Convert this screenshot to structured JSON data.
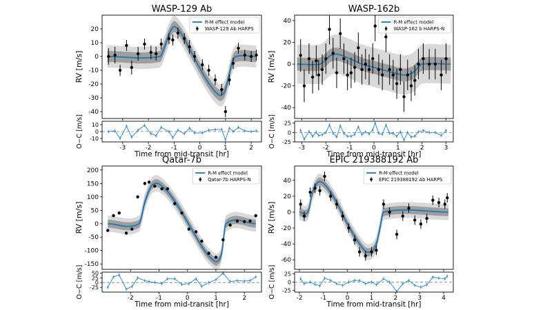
{
  "figure": {
    "legend_model_label": "R-M effect model"
  },
  "chart_data": [
    {
      "type": "line",
      "title": "WASP-129 Ab",
      "xlabel": "Time from mid-transit [hr]",
      "ylabel": "RV [m/s]",
      "resid_ylabel": "O−C [m/s]",
      "legend_data_label": "WASP-129 Ab HARPS",
      "legend_position": "top-right",
      "xlim": [
        -3.8,
        2.4
      ],
      "ylim": [
        -45,
        30
      ],
      "yticks": [
        -40,
        -30,
        -20,
        -10,
        0,
        10,
        20
      ],
      "xticks": [
        -3,
        -2,
        -1,
        0,
        1,
        2
      ],
      "resid_ylim": [
        -15,
        15
      ],
      "resid_yticks": [
        -10,
        0,
        10
      ],
      "model": {
        "x": [
          -3.6,
          -1.55,
          -1.35,
          -1.2,
          -1.05,
          -0.95,
          -0.7,
          -0.3,
          0.3,
          0.75,
          0.95,
          1.1,
          1.25,
          1.4,
          2.2
        ],
        "y": [
          0,
          0,
          8,
          16,
          21,
          21.5,
          16,
          2,
          -18,
          -28,
          -26,
          -17,
          -5,
          0,
          0
        ]
      },
      "model_band_width": 4,
      "model_band_width_outer": 8,
      "data": {
        "x": [
          -3.55,
          -3.3,
          -3.1,
          -2.85,
          -2.65,
          -2.4,
          -2.15,
          -1.9,
          -1.7,
          -1.5,
          -1.2,
          -1.05,
          -0.85,
          -0.6,
          -0.4,
          -0.2,
          0.1,
          0.35,
          0.6,
          0.85,
          1.0,
          1.15,
          1.3,
          1.5,
          1.75,
          2.0,
          2.2
        ],
        "y": [
          0,
          1,
          -10,
          8,
          -8,
          2,
          9,
          3,
          2,
          9,
          13,
          12,
          17,
          13,
          7,
          0,
          -6,
          -10,
          -17,
          -24,
          -40,
          -17,
          -5,
          6,
          1,
          0,
          1
        ],
        "err": [
          6,
          6,
          4,
          4,
          5,
          5,
          4,
          5,
          5,
          4,
          4,
          4,
          4,
          4,
          5,
          4,
          4,
          4,
          4,
          4,
          4,
          4,
          4,
          4,
          4,
          4,
          4
        ]
      },
      "residuals": [
        0,
        1,
        -10,
        8,
        -8,
        2,
        9,
        -3,
        -6,
        6,
        0,
        -9,
        2,
        -3,
        5,
        -2,
        -2,
        2,
        3,
        3,
        -12,
        5,
        0,
        6,
        1,
        0,
        1
      ]
    },
    {
      "type": "line",
      "title": "WASP-162b",
      "xlabel": "Time from mid-transit [hr]",
      "ylabel": "RV [m/s]",
      "resid_ylabel": "O−C [m/s]",
      "legend_data_label": "WASP-162 b HARPS-N",
      "legend_position": "top-right",
      "xlim": [
        -3.3,
        3.3
      ],
      "ylim": [
        -50,
        45
      ],
      "yticks": [
        -40,
        -20,
        0,
        20,
        40
      ],
      "xticks": [
        -3,
        -2,
        -1,
        0,
        1,
        2,
        3
      ],
      "resid_ylim": [
        -25,
        30
      ],
      "resid_yticks": [
        -25,
        0,
        25
      ],
      "model": {
        "x": [
          -3.2,
          -2.25,
          -2.0,
          -1.8,
          -1.5,
          -1.0,
          -0.5,
          0.0,
          0.5,
          1.0,
          1.3,
          1.6,
          1.8,
          2.0,
          3.2
        ],
        "y": [
          0,
          0,
          4,
          8,
          9,
          5,
          0,
          -3,
          -6,
          -9,
          -10,
          -8,
          -4,
          0,
          0
        ]
      },
      "model_band_width": 6,
      "model_band_width_outer": 18,
      "data": {
        "x": [
          -3.05,
          -2.9,
          -2.7,
          -2.55,
          -2.4,
          -2.3,
          -2.15,
          -2.0,
          -1.85,
          -1.7,
          -1.55,
          -1.4,
          -1.25,
          -1.1,
          -0.95,
          -0.8,
          -0.65,
          -0.5,
          -0.35,
          -0.2,
          -0.05,
          0.05,
          0.2,
          0.35,
          0.5,
          0.65,
          0.8,
          0.95,
          1.1,
          1.25,
          1.4,
          1.55,
          1.7,
          1.85,
          2.05,
          2.3,
          2.55,
          2.8,
          3.0
        ],
        "y": [
          8,
          -20,
          5,
          -12,
          3,
          -10,
          -5,
          5,
          32,
          10,
          -8,
          28,
          5,
          -10,
          -8,
          -3,
          15,
          -5,
          0,
          -5,
          5,
          35,
          -5,
          -10,
          25,
          -5,
          -10,
          -18,
          -5,
          -30,
          -10,
          -20,
          -15,
          0,
          5,
          0,
          0,
          -10,
          5
        ],
        "err": [
          15,
          15,
          14,
          15,
          14,
          14,
          14,
          14,
          14,
          14,
          14,
          14,
          14,
          14,
          14,
          14,
          14,
          14,
          14,
          14,
          14,
          14,
          14,
          14,
          14,
          14,
          14,
          14,
          14,
          14,
          14,
          14,
          14,
          14,
          14,
          14,
          14,
          14,
          14
        ]
      },
      "residuals": [
        6,
        -18,
        3,
        -10,
        1,
        -8,
        -6,
        0,
        20,
        -2,
        -12,
        18,
        -2,
        -10,
        -10,
        -5,
        15,
        -5,
        2,
        -4,
        7,
        25,
        -2,
        -5,
        20,
        -2,
        -2,
        -10,
        2,
        -20,
        0,
        -12,
        -10,
        2,
        5,
        0,
        0,
        -8,
        5
      ]
    },
    {
      "type": "line",
      "title": "Qatar-7b",
      "xlabel": "Time from mid-transit [hr]",
      "ylabel": "RV [m/s]",
      "resid_ylabel": "O−C [m/s]",
      "legend_data_label": "Qatar-7b HARPS-N",
      "legend_position": "top-right",
      "xlim": [
        -3.0,
        2.6
      ],
      "ylim": [
        -170,
        215
      ],
      "yticks": [
        -150,
        -100,
        -50,
        0,
        50,
        100,
        150,
        200
      ],
      "xticks": [
        -2,
        -1,
        0,
        1,
        2
      ],
      "resid_ylim": [
        -50,
        55
      ],
      "resid_yticks": [
        -25,
        0,
        25,
        50
      ],
      "model": {
        "x": [
          -2.8,
          -1.7,
          -1.5,
          -1.3,
          -1.15,
          -1.0,
          -0.7,
          -0.3,
          0.2,
          0.6,
          0.9,
          1.05,
          1.2,
          1.35,
          2.4
        ],
        "y": [
          0,
          0,
          80,
          135,
          150,
          148,
          120,
          60,
          -30,
          -100,
          -135,
          -140,
          -110,
          0,
          0
        ]
      },
      "model_band_width": 15,
      "model_band_width_outer": 30,
      "data": {
        "x": [
          -2.8,
          -2.6,
          -2.4,
          -2.15,
          -1.95,
          -1.75,
          -1.5,
          -1.35,
          -1.15,
          -0.9,
          -0.7,
          -0.45,
          -0.2,
          0.05,
          0.3,
          0.5,
          0.75,
          1.0,
          1.25,
          1.5,
          1.75,
          2.0,
          2.2,
          2.4
        ],
        "y": [
          -25,
          30,
          40,
          -35,
          -20,
          100,
          150,
          155,
          140,
          130,
          130,
          75,
          40,
          -20,
          -30,
          -65,
          -110,
          -125,
          -60,
          -5,
          10,
          8,
          10,
          30
        ],
        "err": [
          6,
          6,
          6,
          6,
          6,
          6,
          6,
          6,
          6,
          6,
          6,
          6,
          6,
          6,
          6,
          6,
          6,
          6,
          6,
          6,
          6,
          6,
          6,
          6
        ]
      },
      "residuals": [
        -25,
        30,
        40,
        -35,
        -20,
        25,
        10,
        5,
        0,
        -5,
        20,
        20,
        -10,
        -5,
        20,
        -20,
        0,
        15,
        50,
        5,
        10,
        8,
        10,
        30
      ]
    },
    {
      "type": "line",
      "title": "EPIC 219388192 Ab",
      "xlabel": "Time from mid-transit [hr]",
      "ylabel": "RV [m/s]",
      "resid_ylabel": "O−C [m/s]",
      "legend_data_label": "EPIC 219388192 Ab HARPS",
      "legend_position": "top-right",
      "xlim": [
        -2.2,
        4.4
      ],
      "ylim": [
        -72,
        58
      ],
      "yticks": [
        -60,
        -40,
        -20,
        0,
        20,
        40
      ],
      "xticks": [
        -2,
        -1,
        0,
        1,
        2,
        3,
        4
      ],
      "resid_ylim": [
        -30,
        30
      ],
      "resid_yticks": [
        -25,
        0,
        25
      ],
      "model": {
        "x": [
          -2.0,
          -1.65,
          -1.45,
          -1.25,
          -1.1,
          -0.9,
          -0.5,
          0.0,
          0.5,
          0.8,
          1.05,
          1.2,
          1.35,
          1.5,
          4.2
        ],
        "y": [
          0,
          0,
          25,
          37,
          38,
          33,
          15,
          -15,
          -40,
          -50,
          -48,
          -40,
          -20,
          0,
          0
        ]
      },
      "model_band_width": 5,
      "model_band_width_outer": 10,
      "data": {
        "x": [
          -1.95,
          -1.8,
          -1.55,
          -1.35,
          -1.15,
          -0.95,
          -0.7,
          -0.45,
          -0.2,
          0.05,
          0.3,
          0.5,
          0.75,
          1.0,
          1.2,
          1.5,
          1.75,
          2.05,
          2.3,
          2.55,
          2.8,
          3.05,
          3.3,
          3.55,
          3.8,
          4.05,
          4.15
        ],
        "y": [
          10,
          -5,
          25,
          30,
          27,
          45,
          20,
          10,
          -5,
          -20,
          -35,
          -50,
          -55,
          -50,
          -48,
          10,
          0,
          -28,
          -5,
          5,
          -10,
          -15,
          -8,
          15,
          12,
          10,
          18
        ],
        "err": [
          6,
          6,
          6,
          6,
          6,
          6,
          6,
          6,
          6,
          6,
          6,
          6,
          6,
          6,
          6,
          6,
          6,
          6,
          6,
          6,
          6,
          6,
          6,
          6,
          6,
          6,
          6
        ]
      },
      "residuals": [
        10,
        -5,
        0,
        -7,
        -11,
        12,
        5,
        -5,
        -10,
        0,
        5,
        5,
        -5,
        0,
        -8,
        10,
        0,
        -28,
        -5,
        5,
        -10,
        -15,
        -8,
        15,
        12,
        10,
        18
      ]
    }
  ]
}
